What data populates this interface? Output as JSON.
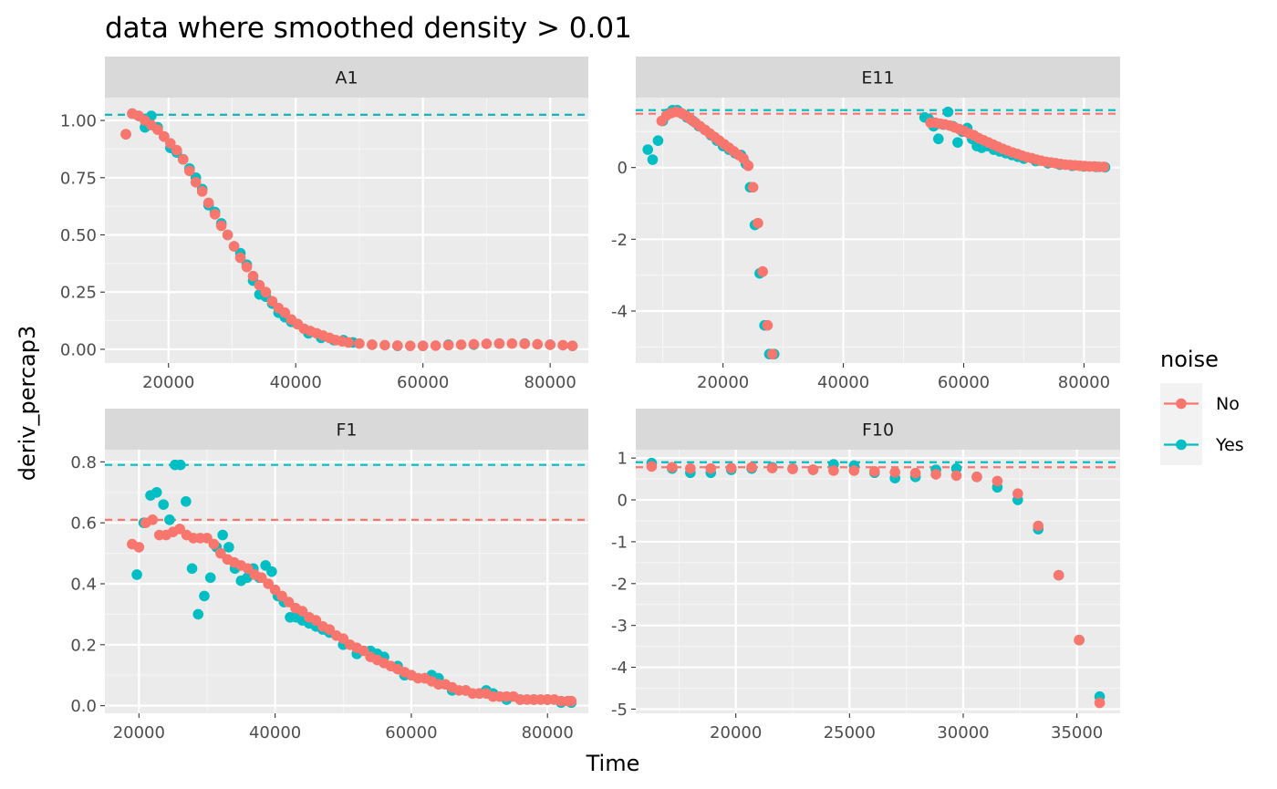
{
  "chart_data": {
    "type": "scatter",
    "title": "data where smoothed density > 0.01",
    "xlabel": "Time",
    "ylabel": "deriv_percap3",
    "legend": {
      "title": "noise",
      "position": "right",
      "entries": [
        {
          "label": "No",
          "color": "#F8766D"
        },
        {
          "label": "Yes",
          "color": "#00BFC4"
        }
      ]
    },
    "grid": true,
    "panels": [
      {
        "name": "A1",
        "xlim": [
          10000,
          86000
        ],
        "ylim": [
          -0.06,
          1.1
        ],
        "x_ticks": [
          20000,
          40000,
          60000,
          80000
        ],
        "x_tick_labels": [
          "20000",
          "40000",
          "60000",
          "80000"
        ],
        "y_ticks": [
          0,
          0.25,
          0.5,
          0.75,
          1
        ],
        "y_tick_labels": [
          "0.00",
          "0.25",
          "0.50",
          "0.75",
          "1.00"
        ],
        "hlines": [
          {
            "series": "No",
            "y": 1.025
          },
          {
            "series": "Yes",
            "y": 1.025
          }
        ],
        "series": [
          {
            "name": "Yes",
            "x": [
              13300,
              14300,
              15300,
              16300,
              17300,
              18300,
              19300,
              20300,
              21300,
              22300,
              23300,
              24300,
              25300,
              26300,
              27300,
              28300,
              29300,
              30300,
              31300,
              32300,
              33300,
              34300,
              35300,
              36300,
              37300,
              38300,
              39300,
              40300,
              42000,
              44000,
              46000,
              47500,
              49000,
              52000,
              56000,
              60000,
              64000,
              68000,
              72000,
              76000,
              80000,
              83500
            ],
            "y": [
              0.94,
              1.03,
              1.02,
              0.97,
              1.02,
              0.97,
              0.93,
              0.88,
              0.86,
              0.83,
              0.79,
              0.75,
              0.7,
              0.63,
              0.6,
              0.55,
              0.5,
              0.45,
              0.42,
              0.37,
              0.3,
              0.24,
              0.23,
              0.2,
              0.16,
              0.14,
              0.12,
              0.11,
              0.07,
              0.05,
              0.04,
              0.04,
              0.03,
              0.02,
              0.015,
              0.015,
              0.02,
              0.02,
              0.025,
              0.025,
              0.02,
              0.015
            ]
          },
          {
            "name": "No",
            "x": [
              13300,
              14300,
              15300,
              16300,
              17300,
              18300,
              19300,
              20300,
              21300,
              22300,
              23300,
              24300,
              25300,
              26300,
              27300,
              28300,
              29300,
              30300,
              31300,
              32300,
              33300,
              34300,
              35300,
              36300,
              37300,
              38300,
              39300,
              40300,
              41300,
              42300,
              43300,
              44300,
              45300,
              46300,
              47300,
              48300,
              50000,
              52000,
              54000,
              56000,
              58000,
              60000,
              62000,
              64000,
              66000,
              68000,
              70000,
              72000,
              74000,
              76000,
              78000,
              80000,
              82000,
              83500
            ],
            "y": [
              0.94,
              1.03,
              1.02,
              1.0,
              0.98,
              0.96,
              0.93,
              0.9,
              0.87,
              0.83,
              0.78,
              0.73,
              0.69,
              0.64,
              0.59,
              0.54,
              0.5,
              0.45,
              0.4,
              0.36,
              0.32,
              0.28,
              0.25,
              0.21,
              0.18,
              0.16,
              0.13,
              0.11,
              0.09,
              0.08,
              0.07,
              0.06,
              0.05,
              0.04,
              0.035,
              0.03,
              0.025,
              0.02,
              0.018,
              0.016,
              0.015,
              0.015,
              0.016,
              0.018,
              0.02,
              0.022,
              0.024,
              0.025,
              0.025,
              0.024,
              0.022,
              0.02,
              0.018,
              0.015
            ]
          }
        ]
      },
      {
        "name": "E11",
        "xlim": [
          5500,
          86000
        ],
        "ylim": [
          -5.45,
          1.95
        ],
        "x_ticks": [
          20000,
          40000,
          60000,
          80000
        ],
        "x_tick_labels": [
          "20000",
          "40000",
          "60000",
          "80000"
        ],
        "y_ticks": [
          -4,
          -2,
          0
        ],
        "y_tick_labels": [
          "-4",
          "-2",
          "0"
        ],
        "hlines": [
          {
            "series": "No",
            "y": 1.5
          },
          {
            "series": "Yes",
            "y": 1.6
          }
        ],
        "series": [
          {
            "name": "Yes",
            "x": [
              7500,
              8300,
              9200,
              10000,
              10800,
              11600,
              12400,
              13200,
              14000,
              15000,
              16000,
              17000,
              18000,
              19000,
              20000,
              21000,
              22000,
              23000,
              23800,
              24500,
              25300,
              26100,
              26900,
              27700,
              28500,
              53500,
              54200,
              55000,
              55800,
              56600,
              57400,
              58200,
              59000,
              59800,
              60600,
              61400,
              62200,
              63000,
              64000,
              65000,
              66000,
              67000,
              68000,
              69000,
              70000,
              72000,
              74000,
              76000,
              78000,
              80000,
              82000,
              83500
            ],
            "y": [
              0.5,
              0.22,
              0.75,
              1.3,
              1.5,
              1.6,
              1.6,
              1.5,
              1.4,
              1.3,
              1.15,
              1.05,
              0.9,
              0.75,
              0.6,
              0.5,
              0.4,
              0.35,
              0.1,
              -0.55,
              -1.6,
              -2.95,
              -4.4,
              -5.2,
              -5.2,
              1.4,
              1.35,
              1.15,
              0.8,
              1.2,
              1.55,
              1.15,
              0.7,
              1.0,
              1.1,
              0.8,
              0.6,
              0.55,
              0.6,
              0.5,
              0.45,
              0.4,
              0.35,
              0.3,
              0.25,
              0.18,
              0.12,
              0.08,
              0.05,
              0.03,
              0.02,
              0.01
            ]
          },
          {
            "name": "No",
            "x": [
              9800,
              10600,
              11400,
              12200,
              13000,
              13800,
              14600,
              15400,
              16200,
              17000,
              17800,
              18600,
              19400,
              20200,
              21000,
              21800,
              22600,
              23400,
              24200,
              25000,
              25800,
              26600,
              27400,
              28200,
              54500,
              55300,
              56100,
              56900,
              57700,
              58500,
              59300,
              60100,
              60900,
              61700,
              62500,
              63300,
              64100,
              64900,
              65700,
              66500,
              67300,
              68100,
              68900,
              69700,
              70500,
              71300,
              72100,
              72900,
              73700,
              74500,
              75300,
              76100,
              76900,
              77700,
              78500,
              79300,
              80100,
              80900,
              81700,
              82500,
              83300
            ],
            "y": [
              1.3,
              1.45,
              1.52,
              1.55,
              1.52,
              1.45,
              1.35,
              1.25,
              1.15,
              1.05,
              0.95,
              0.85,
              0.75,
              0.65,
              0.55,
              0.45,
              0.35,
              0.25,
              0.05,
              -0.55,
              -1.55,
              -2.9,
              -4.4,
              -5.2,
              1.25,
              1.25,
              1.22,
              1.2,
              1.17,
              1.12,
              1.07,
              1.02,
              0.95,
              0.9,
              0.82,
              0.76,
              0.7,
              0.64,
              0.58,
              0.52,
              0.47,
              0.42,
              0.38,
              0.33,
              0.29,
              0.26,
              0.22,
              0.19,
              0.16,
              0.14,
              0.12,
              0.1,
              0.08,
              0.07,
              0.06,
              0.05,
              0.04,
              0.03,
              0.03,
              0.02,
              0.02
            ]
          }
        ]
      },
      {
        "name": "F1",
        "xlim": [
          15000,
          86000
        ],
        "ylim": [
          -0.025,
          0.84
        ],
        "x_ticks": [
          20000,
          40000,
          60000,
          80000
        ],
        "x_tick_labels": [
          "20000",
          "40000",
          "60000",
          "80000"
        ],
        "y_ticks": [
          0,
          0.2,
          0.4,
          0.6,
          0.8
        ],
        "y_tick_labels": [
          "0.0",
          "0.2",
          "0.4",
          "0.6",
          "0.8"
        ],
        "hlines": [
          {
            "series": "No",
            "y": 0.61
          },
          {
            "series": "Yes",
            "y": 0.79
          }
        ],
        "series": [
          {
            "name": "Yes",
            "x": [
              19700,
              20700,
              21700,
              22600,
              23600,
              24500,
              25300,
              26100,
              26900,
              27800,
              28700,
              29600,
              30500,
              31400,
              32300,
              33200,
              34100,
              35000,
              35900,
              36800,
              37700,
              38600,
              39500,
              40400,
              41300,
              42200,
              43100,
              44000,
              45000,
              46000,
              47000,
              48000,
              50000,
              52000,
              54000,
              55000,
              56000,
              58000,
              59000,
              60000,
              62000,
              63000,
              64000,
              66000,
              68000,
              70000,
              71000,
              72000,
              74000,
              76000,
              78000,
              80000,
              82000,
              83500
            ],
            "y": [
              0.43,
              0.6,
              0.69,
              0.7,
              0.66,
              0.61,
              0.79,
              0.79,
              0.67,
              0.45,
              0.3,
              0.36,
              0.42,
              0.52,
              0.56,
              0.52,
              0.45,
              0.41,
              0.42,
              0.45,
              0.42,
              0.46,
              0.44,
              0.36,
              0.34,
              0.29,
              0.29,
              0.28,
              0.27,
              0.26,
              0.25,
              0.24,
              0.2,
              0.17,
              0.18,
              0.17,
              0.16,
              0.13,
              0.1,
              0.1,
              0.09,
              0.1,
              0.09,
              0.05,
              0.05,
              0.04,
              0.05,
              0.04,
              0.02,
              0.02,
              0.02,
              0.02,
              0.01,
              0.01
            ]
          },
          {
            "name": "No",
            "x": [
              19000,
              20000,
              21000,
              22000,
              23000,
              24000,
              25000,
              26000,
              27000,
              28000,
              29000,
              30000,
              31000,
              32000,
              33000,
              34000,
              35000,
              36000,
              37000,
              38000,
              39000,
              40000,
              41000,
              42000,
              43000,
              44000,
              45000,
              46000,
              47000,
              48000,
              49000,
              50000,
              51000,
              52000,
              53000,
              54000,
              55000,
              56000,
              57000,
              58000,
              59000,
              60000,
              61000,
              62000,
              63000,
              64000,
              65000,
              66000,
              67000,
              68000,
              69000,
              70000,
              71000,
              72000,
              73000,
              74000,
              75000,
              76000,
              77000,
              78000,
              79000,
              80000,
              81000,
              82000,
              83000,
              83500
            ],
            "y": [
              0.53,
              0.52,
              0.6,
              0.61,
              0.56,
              0.56,
              0.57,
              0.58,
              0.56,
              0.55,
              0.55,
              0.55,
              0.53,
              0.5,
              0.48,
              0.47,
              0.46,
              0.45,
              0.43,
              0.42,
              0.4,
              0.38,
              0.36,
              0.34,
              0.32,
              0.31,
              0.29,
              0.28,
              0.26,
              0.25,
              0.23,
              0.22,
              0.2,
              0.19,
              0.18,
              0.16,
              0.15,
              0.14,
              0.13,
              0.12,
              0.11,
              0.1,
              0.09,
              0.09,
              0.08,
              0.07,
              0.07,
              0.06,
              0.05,
              0.05,
              0.04,
              0.04,
              0.04,
              0.03,
              0.03,
              0.03,
              0.03,
              0.02,
              0.02,
              0.02,
              0.02,
              0.02,
              0.02,
              0.015,
              0.015,
              0.015
            ]
          }
        ]
      },
      {
        "name": "F10",
        "xlim": [
          15600,
          36900
        ],
        "ylim": [
          -5.1,
          1.2
        ],
        "x_ticks": [
          20000,
          25000,
          30000,
          35000
        ],
        "x_tick_labels": [
          "20000",
          "25000",
          "30000",
          "35000"
        ],
        "y_ticks": [
          -5,
          -4,
          -3,
          -2,
          -1,
          0,
          1
        ],
        "y_tick_labels": [
          "-5",
          "-4",
          "-3",
          "-2",
          "-1",
          "0",
          "1"
        ],
        "hlines": [
          {
            "series": "No",
            "y": 0.78
          },
          {
            "series": "Yes",
            "y": 0.9
          }
        ],
        "series": [
          {
            "name": "Yes",
            "x": [
              16300,
              17200,
              18000,
              18900,
              19800,
              20700,
              21600,
              22500,
              23400,
              24300,
              25200,
              26100,
              27000,
              27900,
              28800,
              29700,
              30600,
              31500,
              32400,
              33300,
              34200,
              35100,
              36000
            ],
            "y": [
              0.88,
              0.75,
              0.65,
              0.65,
              0.72,
              0.75,
              0.78,
              0.75,
              0.72,
              0.85,
              0.82,
              0.65,
              0.52,
              0.55,
              0.72,
              0.75,
              0.55,
              0.3,
              0.0,
              -0.7,
              -1.8,
              -3.35,
              -4.7
            ]
          },
          {
            "name": "No",
            "x": [
              16300,
              17200,
              18000,
              18900,
              19800,
              20700,
              21600,
              22500,
              23400,
              24300,
              25200,
              26100,
              27000,
              27900,
              28800,
              29700,
              30600,
              31500,
              32400,
              33300,
              34200,
              35100,
              36000
            ],
            "y": [
              0.8,
              0.78,
              0.75,
              0.75,
              0.76,
              0.78,
              0.76,
              0.74,
              0.72,
              0.7,
              0.7,
              0.68,
              0.66,
              0.64,
              0.61,
              0.58,
              0.55,
              0.45,
              0.15,
              -0.62,
              -1.8,
              -3.35,
              -4.85
            ]
          }
        ]
      }
    ]
  }
}
